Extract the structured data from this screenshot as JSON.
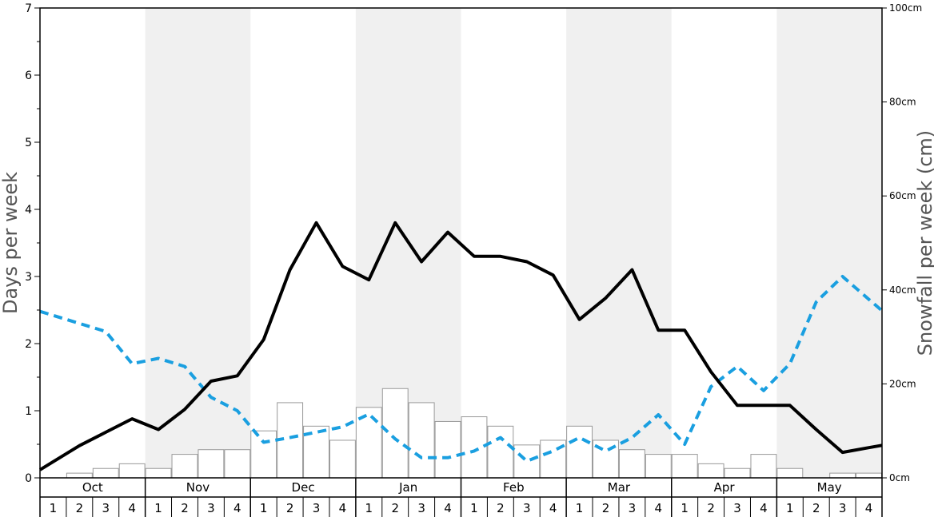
{
  "chart_data": {
    "type": "bar",
    "ylabel": "Days per week",
    "y2label": "Snowfall per week (cm)",
    "ylim": [
      0,
      7
    ],
    "y2lim": [
      0,
      100
    ],
    "y_ticks": [
      "0",
      "1",
      "2",
      "3",
      "4",
      "5",
      "6",
      "7"
    ],
    "y2_ticks": [
      "0cm",
      "20cm",
      "40cm",
      "60cm",
      "80cm",
      "100cm"
    ],
    "months": [
      "Oct",
      "Nov",
      "Dec",
      "Jan",
      "Feb",
      "Mar",
      "Apr",
      "May"
    ],
    "weeks": [
      "1",
      "2",
      "3",
      "4"
    ],
    "alternating_month_shading": true,
    "colors": {
      "shade": "#f0f0f0",
      "bars_fill": "#ffffff",
      "bars_stroke": "#999999",
      "solid_line": "#000000",
      "dashed_line": "#1a9fe0",
      "axis": "#000000",
      "axis_title": "#555555"
    },
    "series": [
      {
        "axis": "right",
        "style": "bars",
        "values": [
          0,
          1,
          2,
          3,
          2,
          5,
          6,
          6,
          10,
          16,
          11,
          8,
          15,
          19,
          16,
          12,
          13,
          11,
          7,
          8,
          11,
          8,
          6,
          5,
          5,
          3,
          2,
          5,
          2,
          0,
          1,
          1
        ]
      },
      {
        "axis": "left",
        "style": "solid-line",
        "values": [
          0.24,
          0.48,
          0.68,
          0.88,
          0.72,
          1.02,
          1.44,
          1.52,
          2.06,
          3.1,
          3.8,
          3.15,
          2.95,
          3.8,
          3.22,
          3.66,
          3.3,
          3.3,
          3.22,
          3.02,
          2.36,
          2.68,
          3.1,
          2.2,
          2.2,
          1.58,
          1.08,
          1.08,
          1.08,
          0.72,
          0.38,
          0.45
        ]
      },
      {
        "axis": "left",
        "style": "dashed-line",
        "values": [
          2.42,
          2.3,
          2.18,
          1.7,
          1.78,
          1.66,
          1.2,
          1.0,
          0.53,
          0.6,
          0.68,
          0.76,
          0.95,
          0.58,
          0.3,
          0.3,
          0.4,
          0.6,
          0.25,
          0.4,
          0.6,
          0.4,
          0.6,
          0.94,
          0.5,
          1.36,
          1.66,
          1.3,
          1.7,
          2.62,
          3.0,
          2.66
        ]
      }
    ]
  }
}
